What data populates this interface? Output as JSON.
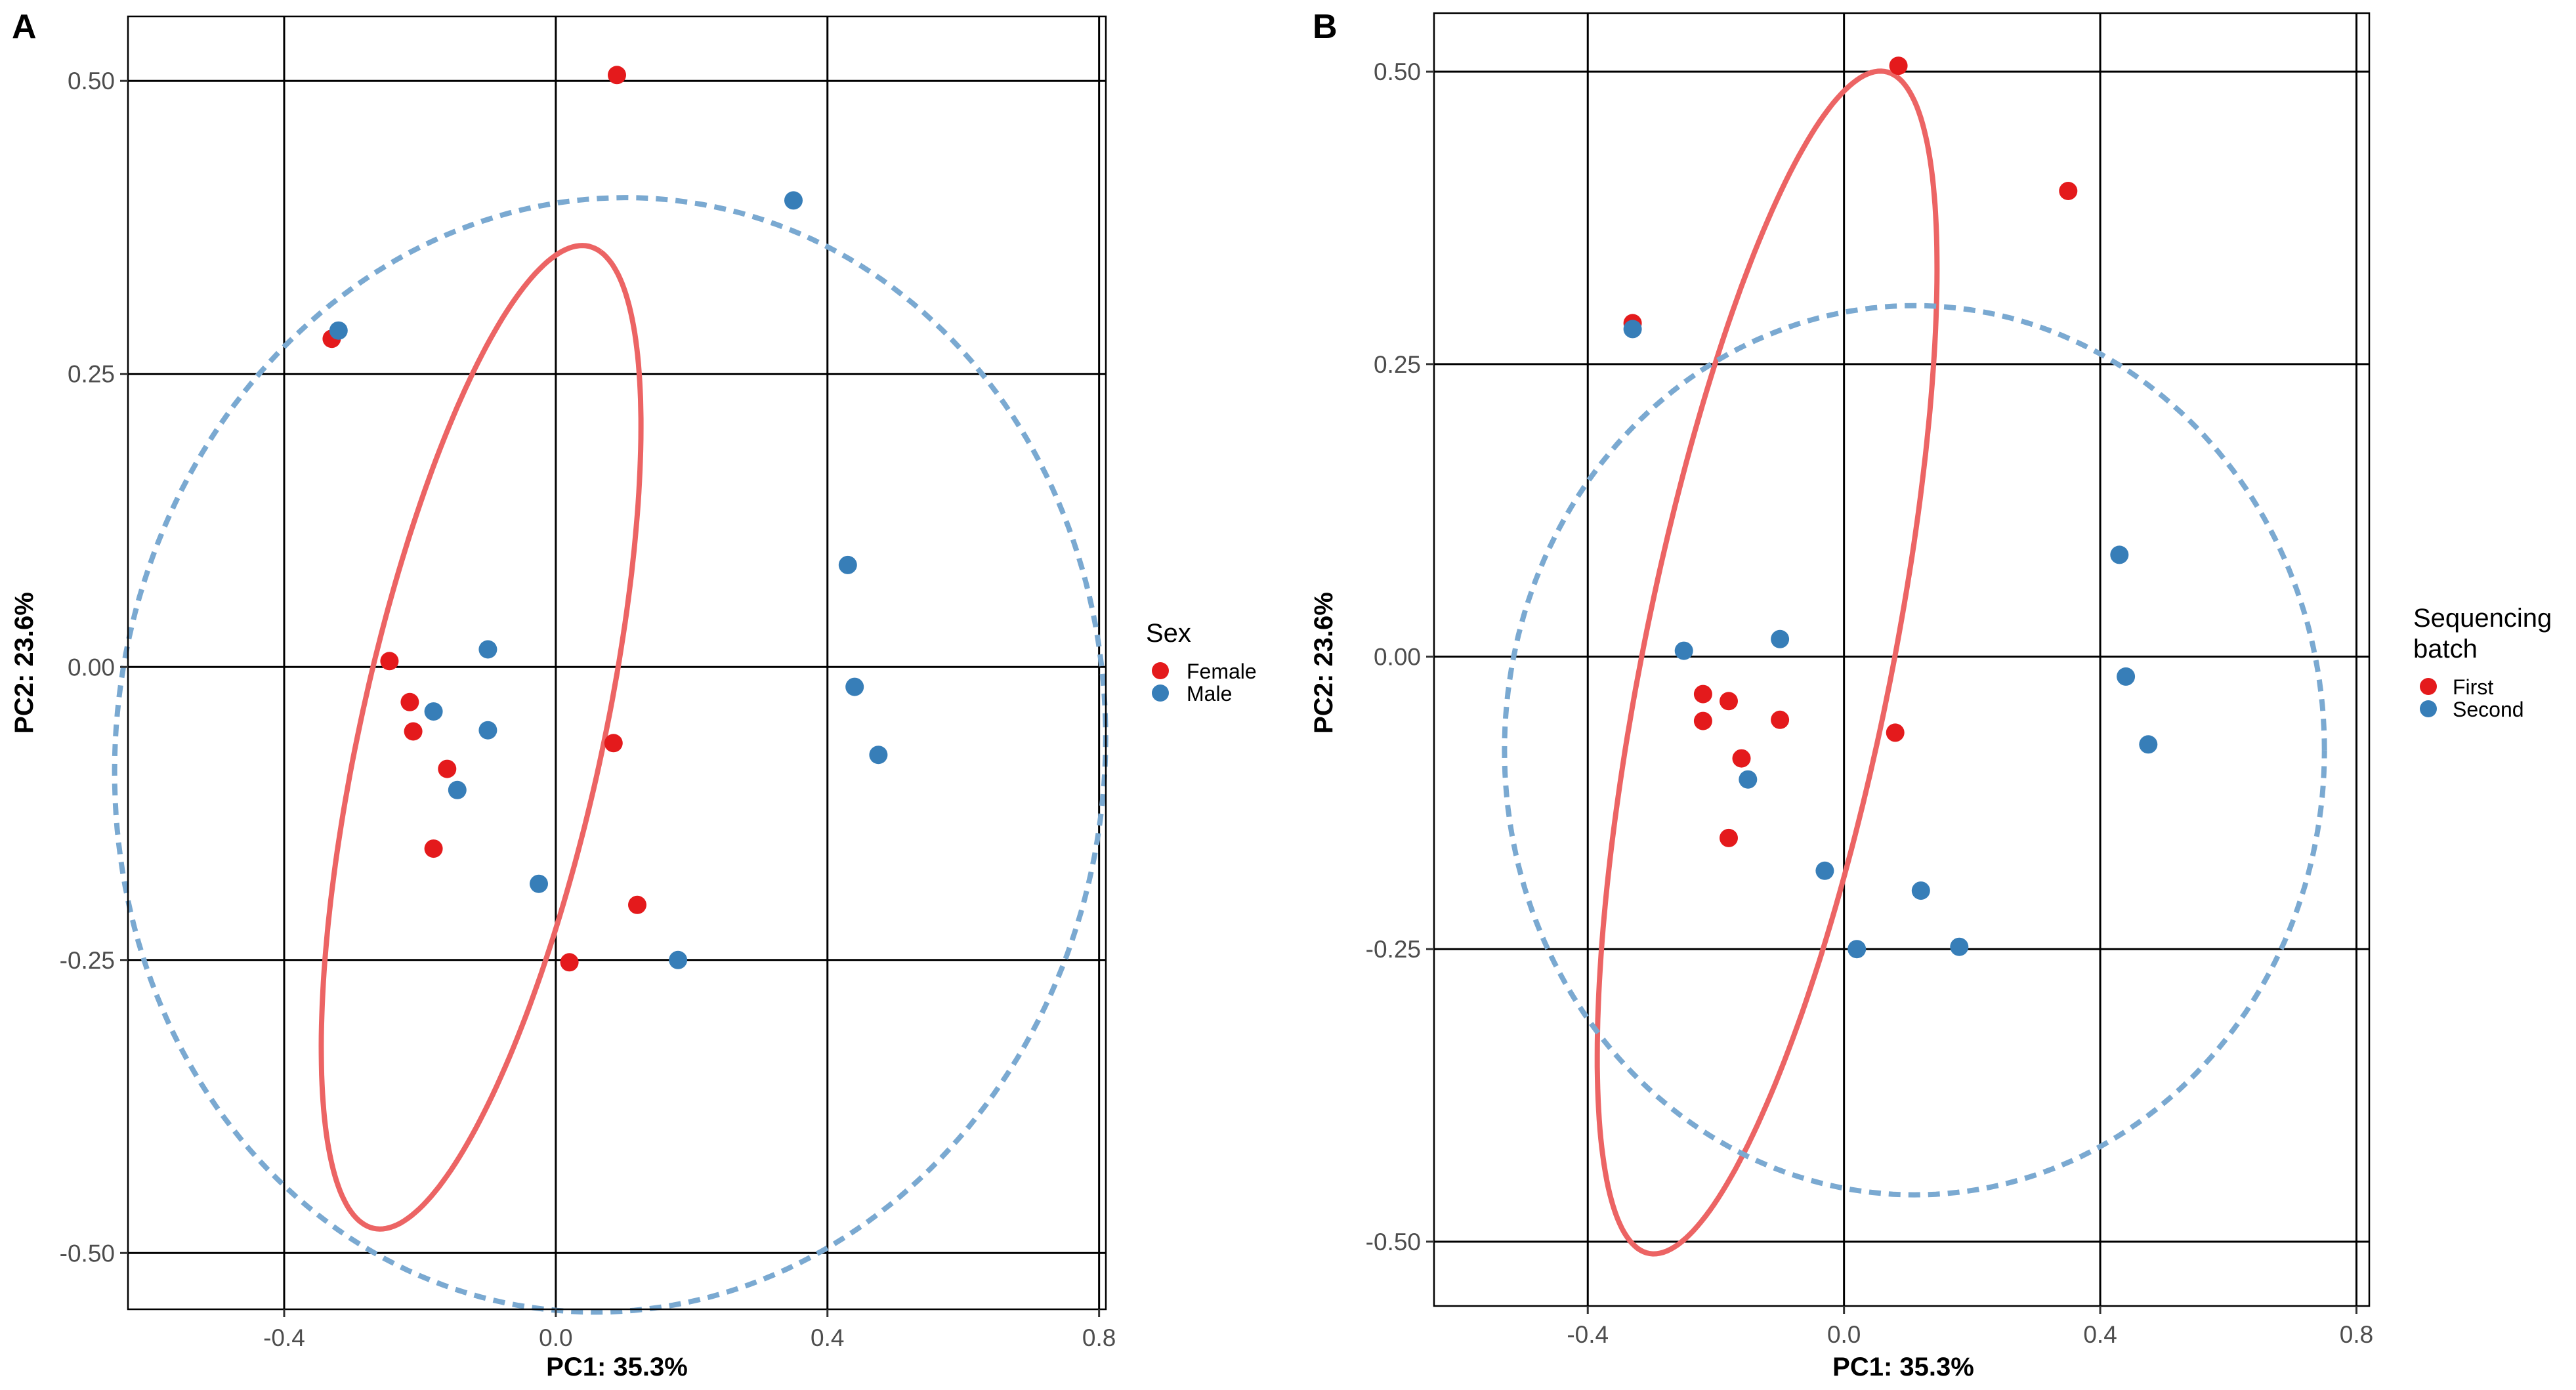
{
  "chart_data": [
    {
      "panel": "A",
      "type": "scatter",
      "xlabel": "PC1: 35.3%",
      "ylabel": "PC2: 23.6%",
      "xlim": [
        -0.63,
        0.81
      ],
      "ylim": [
        -0.548,
        0.555
      ],
      "xticks": [
        -0.4,
        0.0,
        0.4,
        0.8
      ],
      "xtick_labels": [
        "-0.4",
        "0.0",
        "0.4",
        "0.8"
      ],
      "yticks": [
        -0.5,
        -0.25,
        0.0,
        0.25,
        0.5
      ],
      "ytick_labels": [
        "-0.50",
        "-0.25",
        "0.00",
        "0.25",
        "0.50"
      ],
      "grid": true,
      "legend_title": "Sex",
      "series": [
        {
          "name": "Female",
          "color": "#e41a1c",
          "ellipse_color": "#ec6464",
          "ellipse_style": "solid",
          "ellipse": {
            "cx": -0.11,
            "cy": -0.06,
            "rx": 0.45,
            "ry": 0.17,
            "angle_deg": 67
          },
          "points": [
            [
              0.09,
              0.505
            ],
            [
              -0.33,
              0.28
            ],
            [
              -0.245,
              0.005
            ],
            [
              -0.215,
              -0.03
            ],
            [
              -0.21,
              -0.055
            ],
            [
              -0.16,
              -0.087
            ],
            [
              -0.18,
              -0.155
            ],
            [
              0.085,
              -0.065
            ],
            [
              0.12,
              -0.203
            ],
            [
              0.02,
              -0.252
            ]
          ]
        },
        {
          "name": "Male",
          "color": "#377eb8",
          "ellipse_color": "#7aa9d1",
          "ellipse_style": "dashed",
          "ellipse": {
            "cx": 0.08,
            "cy": -0.075,
            "rx": 0.73,
            "ry": 0.475,
            "angle_deg": 2
          },
          "points": [
            [
              0.35,
              0.398
            ],
            [
              -0.32,
              0.287
            ],
            [
              0.43,
              0.087
            ],
            [
              0.44,
              -0.017
            ],
            [
              0.475,
              -0.075
            ],
            [
              -0.1,
              0.015
            ],
            [
              -0.18,
              -0.038
            ],
            [
              -0.1,
              -0.054
            ],
            [
              -0.145,
              -0.105
            ],
            [
              -0.025,
              -0.185
            ],
            [
              0.18,
              -0.25
            ]
          ]
        }
      ]
    },
    {
      "panel": "B",
      "type": "scatter",
      "xlabel": "PC1: 35.3%",
      "ylabel": "PC2: 23.6%",
      "xlim": [
        -0.64,
        0.82
      ],
      "ylim": [
        -0.555,
        0.55
      ],
      "xticks": [
        -0.4,
        0.0,
        0.4,
        0.8
      ],
      "xtick_labels": [
        "-0.4",
        "0.0",
        "0.4",
        "0.8"
      ],
      "yticks": [
        -0.5,
        -0.25,
        0.0,
        0.25,
        0.5
      ],
      "ytick_labels": [
        "-0.50",
        "-0.25",
        "0.00",
        "0.25",
        "0.50"
      ],
      "grid": true,
      "legend_title": "Sequencing batch",
      "legend_title_lines": [
        "Sequencing",
        "batch"
      ],
      "series": [
        {
          "name": "First",
          "color": "#e41a1c",
          "ellipse_color": "#ec6464",
          "ellipse_style": "solid",
          "ellipse": {
            "cx": -0.12,
            "cy": -0.005,
            "rx": 0.54,
            "ry": 0.185,
            "angle_deg": 68
          },
          "points": [
            [
              0.085,
              0.505
            ],
            [
              0.35,
              0.398
            ],
            [
              -0.33,
              0.285
            ],
            [
              -0.22,
              -0.032
            ],
            [
              -0.22,
              -0.055
            ],
            [
              -0.18,
              -0.038
            ],
            [
              -0.1,
              -0.054
            ],
            [
              -0.16,
              -0.087
            ],
            [
              -0.18,
              -0.155
            ],
            [
              0.08,
              -0.065
            ]
          ]
        },
        {
          "name": "Second",
          "color": "#377eb8",
          "ellipse_color": "#7aa9d1",
          "ellipse_style": "dashed",
          "ellipse": {
            "cx": 0.11,
            "cy": -0.08,
            "rx": 0.64,
            "ry": 0.38,
            "angle_deg": 0
          },
          "points": [
            [
              -0.33,
              0.28
            ],
            [
              0.43,
              0.087
            ],
            [
              0.44,
              -0.017
            ],
            [
              0.475,
              -0.075
            ],
            [
              -0.25,
              0.005
            ],
            [
              -0.1,
              0.015
            ],
            [
              -0.15,
              -0.105
            ],
            [
              -0.03,
              -0.183
            ],
            [
              0.12,
              -0.2
            ],
            [
              0.02,
              -0.25
            ],
            [
              0.18,
              -0.248
            ]
          ]
        }
      ]
    }
  ]
}
